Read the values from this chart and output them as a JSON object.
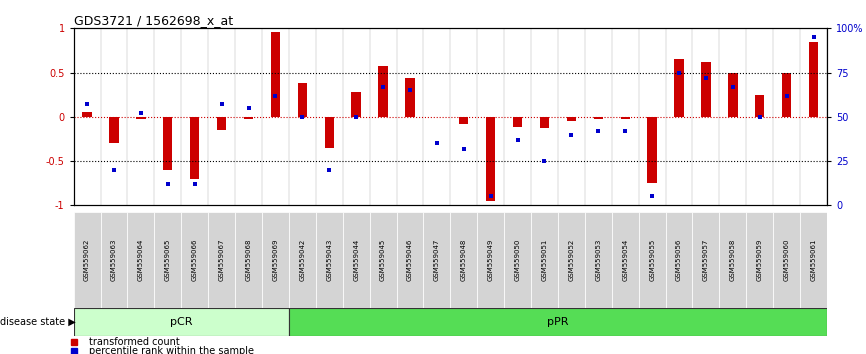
{
  "title": "GDS3721 / 1562698_x_at",
  "samples": [
    "GSM559062",
    "GSM559063",
    "GSM559064",
    "GSM559065",
    "GSM559066",
    "GSM559067",
    "GSM559068",
    "GSM559069",
    "GSM559042",
    "GSM559043",
    "GSM559044",
    "GSM559045",
    "GSM559046",
    "GSM559047",
    "GSM559048",
    "GSM559049",
    "GSM559050",
    "GSM559051",
    "GSM559052",
    "GSM559053",
    "GSM559054",
    "GSM559055",
    "GSM559056",
    "GSM559057",
    "GSM559058",
    "GSM559059",
    "GSM559060",
    "GSM559061"
  ],
  "transformed_count": [
    0.05,
    -0.3,
    -0.02,
    -0.6,
    -0.7,
    -0.15,
    -0.03,
    0.96,
    0.38,
    -0.35,
    0.28,
    0.57,
    0.44,
    0.0,
    -0.08,
    -0.95,
    -0.12,
    -0.13,
    -0.05,
    -0.03,
    -0.02,
    -0.75,
    0.65,
    0.62,
    0.5,
    0.25,
    0.5,
    0.85
  ],
  "percentile_rank": [
    57,
    20,
    52,
    12,
    12,
    57,
    55,
    62,
    50,
    20,
    50,
    67,
    65,
    35,
    32,
    5,
    37,
    25,
    40,
    42,
    42,
    5,
    75,
    72,
    67,
    50,
    62,
    95
  ],
  "groups": [
    {
      "label": "pCR",
      "start": 0,
      "end": 8,
      "color": "#ccffcc"
    },
    {
      "label": "pPR",
      "start": 8,
      "end": 28,
      "color": "#55dd55"
    }
  ],
  "bar_color": "#cc0000",
  "dot_color": "#0000cc",
  "ylim": [
    -1,
    1
  ],
  "yticks_left": [
    -1,
    -0.5,
    0,
    0.5,
    1
  ],
  "yticks_right_vals": [
    0,
    25,
    50,
    75,
    100
  ],
  "zero_line_color": "#cc0000",
  "bg_color": "#ffffff"
}
